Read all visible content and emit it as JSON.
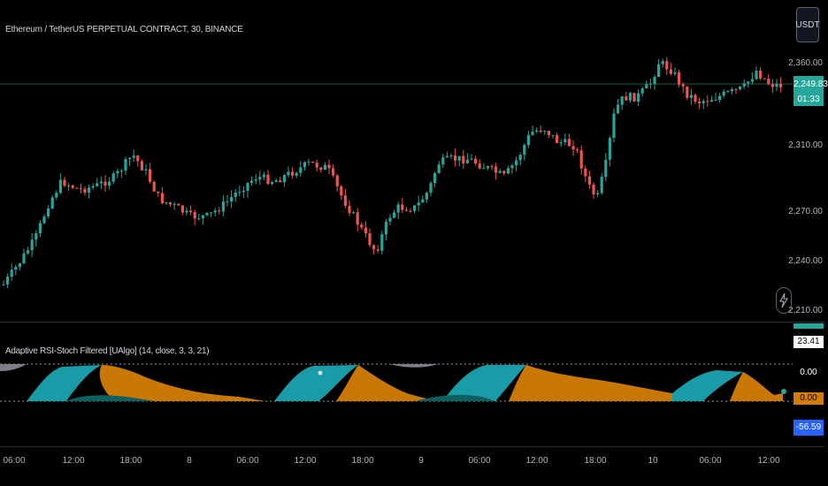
{
  "chart": {
    "symbol_title": "Ethereum / TetherUS PERPETUAL CONTRACT, 30, BINANCE",
    "currency_button": "USDT",
    "last_price": "2,249.83",
    "countdown": "01:33",
    "price_ticks": [
      "2,360.00",
      "2,310.00",
      "2,270.00",
      "2,240.00",
      "2,210.00"
    ],
    "time_ticks": [
      "06:00",
      "12:00",
      "18:00",
      "8",
      "06:00",
      "12:00",
      "18:00",
      "9",
      "06:00",
      "12:00",
      "18:00",
      "10",
      "06:00",
      "12:00"
    ],
    "colors": {
      "up": "#26a69a",
      "down": "#ef5350",
      "price_line": "#26a69a",
      "background": "#000000"
    },
    "bolt_icon": "lightning-icon"
  },
  "indicator": {
    "title": "Adaptive RSI-Stoch Filtered [UAlgo] (14, close, 3, 3, 21)",
    "values": [
      "23.41",
      "0.00",
      "0.00",
      "-56.59"
    ],
    "value_colors": [
      "#ffffff",
      "#000000",
      "#d27d0a",
      "#2962ff"
    ],
    "colors": {
      "teal_fill": "#1a9ba8",
      "orange_fill": "#c97806",
      "band": "#9598a1"
    }
  }
}
